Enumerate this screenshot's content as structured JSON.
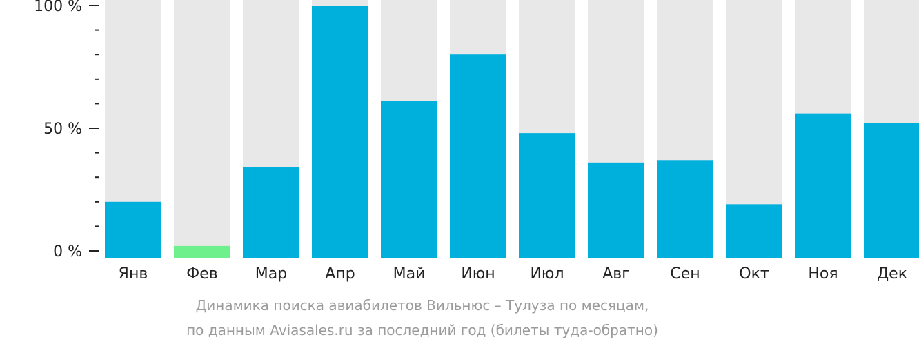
{
  "colors": {
    "background_track": "#e8e8e8",
    "bar": "#00b0dc",
    "highlight_bar": "#6ef08c",
    "axis": "#222222",
    "caption": "#9b9b9b"
  },
  "chart_data": {
    "type": "bar",
    "categories": [
      "Янв",
      "Фев",
      "Мар",
      "Апр",
      "Май",
      "Июн",
      "Июл",
      "Авг",
      "Сен",
      "Окт",
      "Ноя",
      "Дек"
    ],
    "values": [
      20,
      2,
      34,
      100,
      61,
      80,
      48,
      36,
      37,
      19,
      56,
      52
    ],
    "highlight_index": 1,
    "ylim": [
      0,
      100
    ],
    "y_ticks": [
      {
        "value": 0,
        "label": "0 %"
      },
      {
        "value": 50,
        "label": "50 %"
      },
      {
        "value": 100,
        "label": "100 %"
      }
    ],
    "y_minor_ticks": [
      10,
      20,
      30,
      40,
      60,
      70,
      80,
      90
    ],
    "title": "",
    "xlabel": "",
    "ylabel": "",
    "grid": false
  },
  "caption": {
    "line1": "Динамика поиска авиабилетов Вильнюс – Тулуза по месяцам,",
    "line2": "по данным Aviasales.ru за последний год (билеты туда-обратно)"
  }
}
